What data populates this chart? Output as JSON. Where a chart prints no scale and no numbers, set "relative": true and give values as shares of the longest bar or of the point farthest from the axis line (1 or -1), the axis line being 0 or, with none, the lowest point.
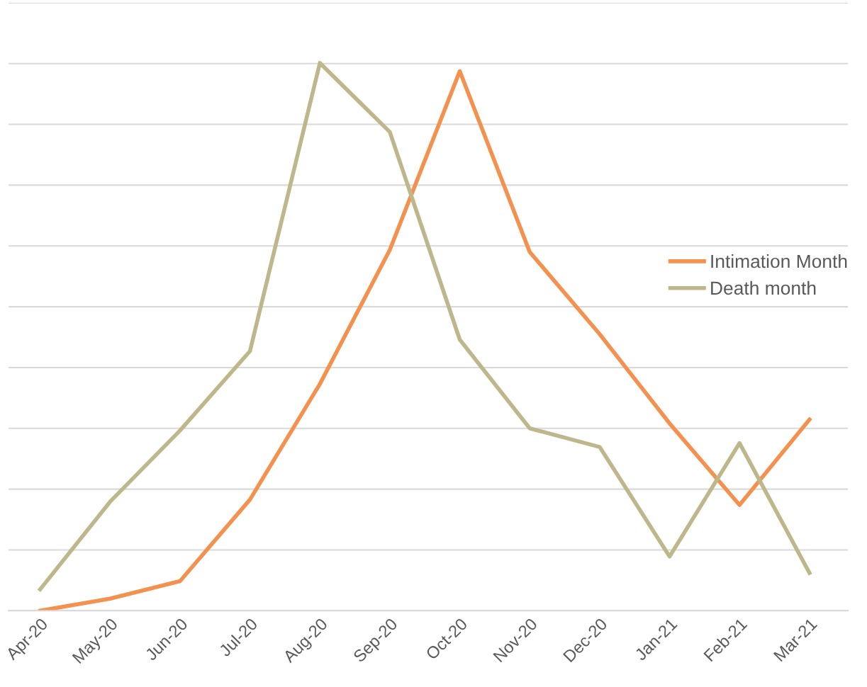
{
  "chart_data": {
    "type": "line",
    "relative": true,
    "categories": [
      "Apr-20",
      "May-20",
      "Jun-20",
      "Jul-20",
      "Aug-20",
      "Sep-20",
      "Oct-20",
      "Nov-20",
      "Dec-20",
      "Jan-21",
      "Feb-21",
      "Mar-21"
    ],
    "series": [
      {
        "name": "Intimation Month",
        "color": "#f4914f",
        "values": [
          0,
          0.022,
          0.054,
          0.203,
          0.414,
          0.659,
          0.985,
          0.655,
          0.505,
          0.342,
          0.193,
          0.349
        ]
      },
      {
        "name": "Death month",
        "color": "#bfb78c",
        "values": [
          0.039,
          0.199,
          0.329,
          0.474,
          1,
          0.874,
          0.495,
          0.333,
          0.299,
          0.099,
          0.306,
          0.069
        ]
      }
    ],
    "grid": "y",
    "legend": "right",
    "marker": "none",
    "line_style": "solid"
  }
}
